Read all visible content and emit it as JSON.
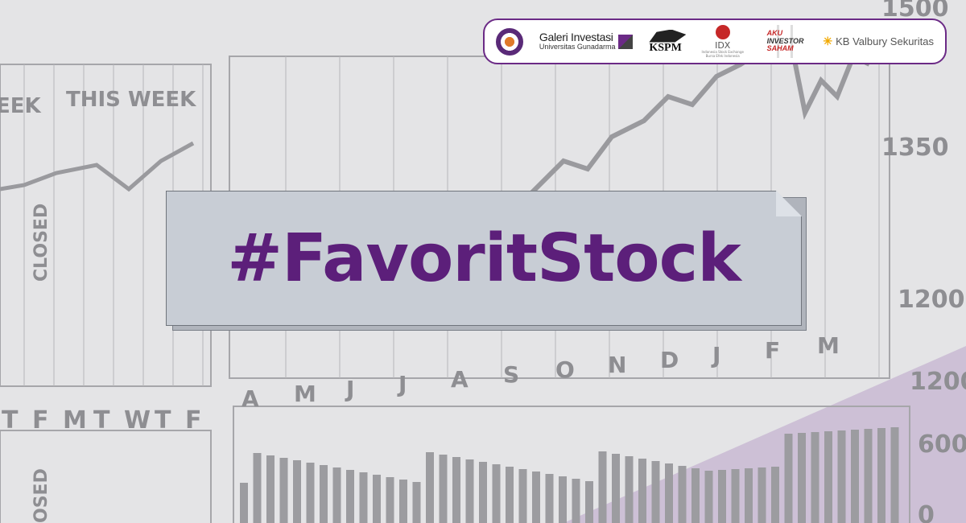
{
  "background": {
    "labels_left": {
      "week_prev": "EEK",
      "this_week": "THIS WEEK",
      "closed": "CLOSED",
      "closed2": "OSED"
    },
    "days": [
      "T",
      "F",
      "M",
      "T",
      "W",
      "T",
      "F"
    ],
    "months": [
      "A",
      "M",
      "J",
      "J",
      "A",
      "S",
      "O",
      "N",
      "D",
      "J",
      "F",
      "M"
    ],
    "price_ticks": [
      "1500",
      "1350",
      "1200"
    ],
    "volume_ticks": [
      "1200",
      "600",
      "0"
    ],
    "colors": {
      "paper": "#e4e4e6",
      "ink": "#8e8e92",
      "accent_overlay": "#b9a3c9"
    }
  },
  "logos": {
    "galeri_line1": "Galeri Investasi",
    "galeri_line2": "Universitas Gunadarma",
    "kspm": "KSPM",
    "idx": "IDX",
    "idx_sub": "Indonesia Stock Exchange Bursa Efek Indonesia",
    "aku_line1": "AKU",
    "aku_line2": "INVESTOR",
    "aku_line3": "SAHAM",
    "kb": "KB Valbury Sekuritas"
  },
  "headline": {
    "text": "#FavoritStock",
    "color": "#5c1f7a"
  }
}
